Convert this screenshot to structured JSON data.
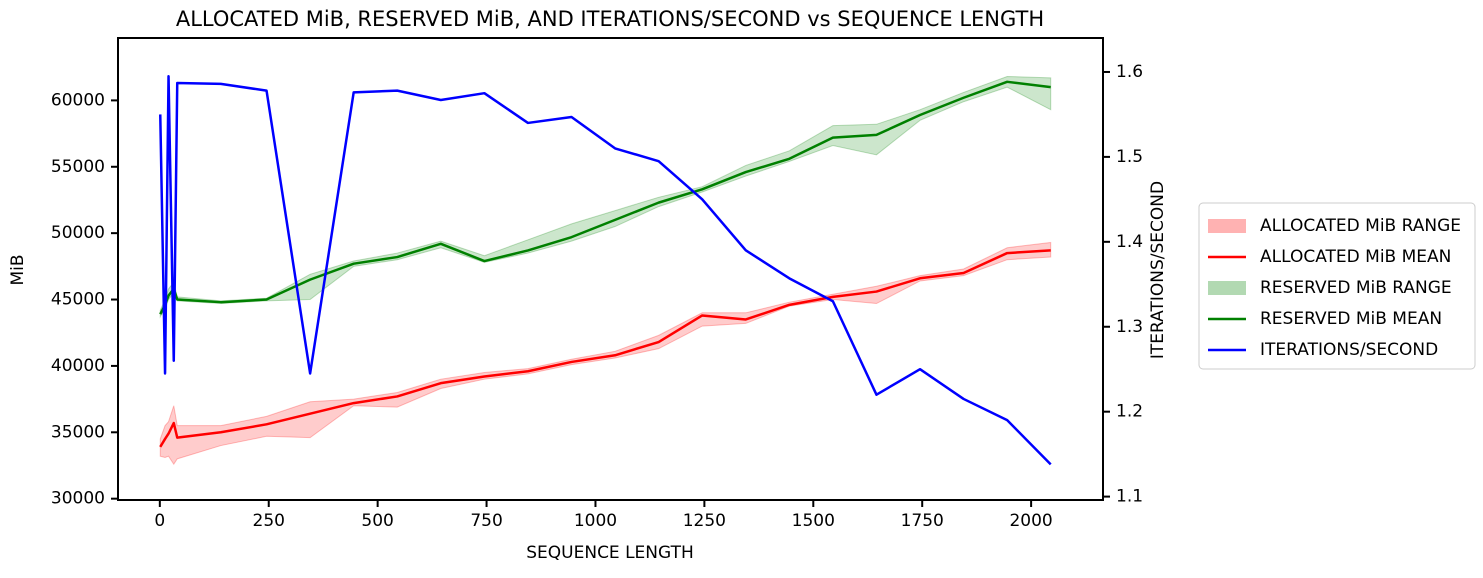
{
  "chart_data": {
    "type": "line",
    "title": "ALLOCATED MiB, RESERVED MiB, AND ITERATIONS/SECOND vs SEQUENCE LENGTH",
    "x_label": "SEQUENCE LENGTH",
    "y_label": "MiB",
    "y2_label": "ITERATIONS/SECOND",
    "x": [
      1,
      12,
      20,
      32,
      40,
      140,
      245,
      345,
      445,
      545,
      645,
      745,
      845,
      945,
      1045,
      1145,
      1245,
      1345,
      1445,
      1545,
      1645,
      1745,
      1845,
      1945,
      2045
    ],
    "xlim": [
      -96,
      2165
    ],
    "xticks": [
      0,
      250,
      500,
      750,
      1000,
      1250,
      1500,
      1750,
      2000
    ],
    "ylim": [
      29900,
      64700
    ],
    "yticks": [
      30000,
      35000,
      40000,
      45000,
      50000,
      55000,
      60000
    ],
    "y2lim": [
      1.096,
      1.64
    ],
    "y2ticks": [
      1.1,
      1.2,
      1.3,
      1.4,
      1.5,
      1.6
    ],
    "legend": "outside-right",
    "series": [
      {
        "name": "ALLOCATED MiB RANGE",
        "kind": "band",
        "color": "#ff0000",
        "low": [
          33200,
          33100,
          33200,
          32600,
          33000,
          34000,
          34700,
          34600,
          37000,
          36900,
          38300,
          39000,
          39400,
          40100,
          40600,
          41300,
          43000,
          43200,
          44500,
          45000,
          44700,
          46400,
          46800,
          48000,
          48200
        ],
        "high": [
          34500,
          35500,
          35800,
          37000,
          35500,
          35500,
          36200,
          37300,
          37500,
          38000,
          39000,
          39500,
          39800,
          40500,
          41100,
          42300,
          44000,
          44000,
          44800,
          45400,
          46000,
          46800,
          47300,
          48900,
          49300
        ]
      },
      {
        "name": "ALLOCATED MiB MEAN",
        "kind": "line",
        "color": "#ff0000",
        "values": [
          33900,
          34500,
          34900,
          35700,
          34600,
          35000,
          35600,
          36400,
          37200,
          37700,
          38700,
          39200,
          39600,
          40300,
          40800,
          41800,
          43800,
          43500,
          44600,
          45200,
          45600,
          46600,
          47000,
          48500,
          48700
        ]
      },
      {
        "name": "RESERVED MiB RANGE",
        "kind": "band",
        "color": "#008000",
        "low": [
          43700,
          44300,
          45000,
          45500,
          44900,
          44700,
          44900,
          45000,
          47500,
          48000,
          48900,
          47800,
          48500,
          49400,
          50500,
          52000,
          53100,
          54300,
          55400,
          56600,
          55900,
          58500,
          59900,
          61000,
          59300
        ],
        "high": [
          44200,
          45000,
          45800,
          46300,
          45200,
          44900,
          45100,
          46900,
          47900,
          48500,
          49400,
          48300,
          49500,
          50700,
          51700,
          52700,
          53500,
          55100,
          56200,
          58100,
          58200,
          59300,
          60600,
          61800,
          61700
        ]
      },
      {
        "name": "RESERVED MiB MEAN",
        "kind": "line",
        "color": "#008000",
        "values": [
          43900,
          44600,
          45300,
          45800,
          45000,
          44800,
          45000,
          46500,
          47700,
          48200,
          49200,
          47900,
          48700,
          49700,
          51000,
          52300,
          53300,
          54600,
          55600,
          57200,
          57400,
          58900,
          60200,
          61400,
          61000
        ]
      },
      {
        "name": "ITERATIONS/SECOND",
        "kind": "line",
        "axis": "y2",
        "color": "#0000ff",
        "values": [
          1.55,
          1.245,
          1.595,
          1.26,
          1.587,
          1.586,
          1.578,
          1.245,
          1.576,
          1.578,
          1.567,
          1.575,
          1.54,
          1.547,
          1.51,
          1.495,
          1.45,
          1.39,
          1.357,
          1.33,
          1.22,
          1.25,
          1.215,
          1.19,
          1.138
        ]
      }
    ]
  }
}
